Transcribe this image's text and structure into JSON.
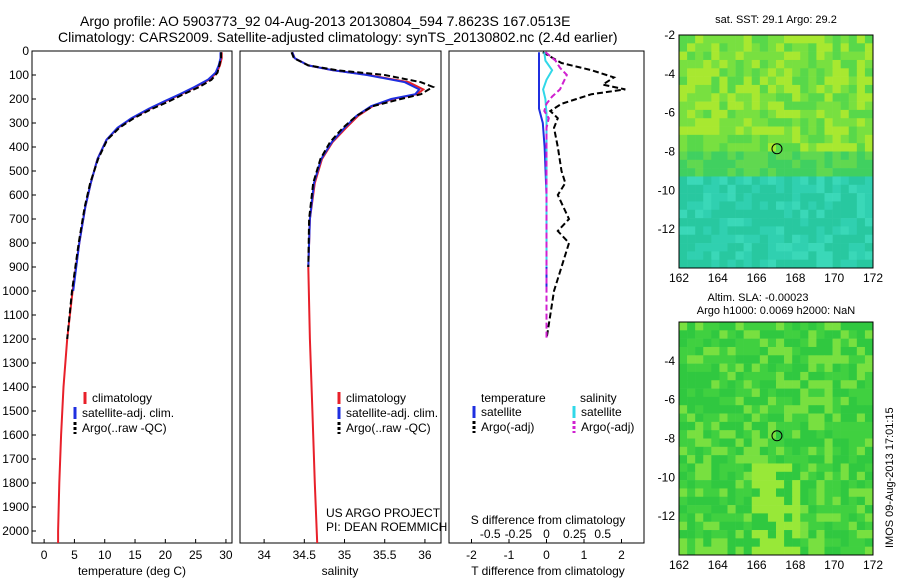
{
  "header": {
    "title_line1": "Argo profile: AO 5903773_92 04-Aug-2013 20130804_594 7.8623S 167.0513E",
    "title_line2": "Climatology: CARS2009. Satellite-adjusted climatology: synTS_20130802.nc (2.4d earlier)"
  },
  "colors": {
    "climatology": "#e8202a",
    "satellite": "#1f2fe0",
    "argo": "#000000",
    "salinity_satellite": "#30d8e8",
    "salinity_argo": "#d020d0"
  },
  "chart_data": [
    {
      "id": "temperature",
      "type": "line",
      "xlabel": "temperature (deg C)",
      "ylabel": "",
      "xlim": [
        -2,
        31
      ],
      "ylim": [
        2050,
        0
      ],
      "xticks": [
        0,
        5,
        10,
        15,
        20,
        25,
        30
      ],
      "yticks": [
        0,
        100,
        200,
        300,
        400,
        500,
        600,
        700,
        800,
        900,
        1000,
        1100,
        1200,
        1300,
        1400,
        1500,
        1600,
        1700,
        1800,
        1900,
        2000
      ],
      "legend": {
        "placement": "bottom-left",
        "entries": [
          "climatology",
          "satellite-adj. clim.",
          "Argo(..raw -QC)"
        ]
      },
      "series": [
        {
          "name": "climatology",
          "style": "solid",
          "color": "#e8202a",
          "depth": [
            5,
            30,
            60,
            90,
            120,
            150,
            180,
            210,
            240,
            280,
            320,
            370,
            450,
            550,
            650,
            800,
            1000,
            1200,
            1400,
            1600,
            1800,
            2000,
            2050
          ],
          "values": [
            29.3,
            29.3,
            29.0,
            28.5,
            27.2,
            25.0,
            22.6,
            20.0,
            17.5,
            14.5,
            12.2,
            10.3,
            8.8,
            7.7,
            6.8,
            5.8,
            4.7,
            3.8,
            3.2,
            2.8,
            2.5,
            2.3,
            2.3
          ]
        },
        {
          "name": "satellite-adj. clim.",
          "style": "solid",
          "color": "#1f2fe0",
          "depth": [
            5,
            30,
            60,
            90,
            120,
            150,
            180,
            210,
            240,
            280,
            320,
            370,
            450,
            550,
            650,
            800,
            1000
          ],
          "values": [
            29.1,
            29.1,
            28.8,
            28.3,
            27.0,
            24.8,
            22.4,
            19.8,
            17.3,
            14.4,
            12.1,
            10.3,
            8.8,
            7.7,
            6.8,
            5.8,
            4.8
          ]
        },
        {
          "name": "Argo(..raw -QC)",
          "style": "dashed",
          "color": "#000000",
          "depth": [
            5,
            30,
            60,
            90,
            120,
            150,
            180,
            210,
            240,
            280,
            320,
            370,
            450,
            550,
            650,
            800,
            1000,
            1200
          ],
          "values": [
            29.2,
            29.2,
            28.9,
            28.6,
            27.6,
            25.6,
            23.0,
            20.6,
            17.9,
            14.8,
            12.4,
            10.4,
            8.9,
            7.6,
            6.7,
            5.7,
            4.6,
            3.8
          ]
        }
      ]
    },
    {
      "id": "salinity",
      "type": "line",
      "xlabel": "salinity",
      "ylabel": "",
      "xlim": [
        33.7,
        36.2
      ],
      "ylim": [
        2050,
        0
      ],
      "xticks": [
        34,
        34.5,
        35,
        35.5,
        36
      ],
      "legend": {
        "placement": "bottom-left",
        "entries": [
          "climatology",
          "satellite-adj. clim.",
          "Argo(..raw -QC)"
        ]
      },
      "annotation": [
        "US ARGO PROJECT",
        "PI: DEAN ROEMMICH"
      ],
      "series": [
        {
          "name": "climatology",
          "style": "solid",
          "color": "#e8202a",
          "depth": [
            5,
            30,
            60,
            80,
            100,
            130,
            160,
            180,
            200,
            230,
            270,
            320,
            380,
            450,
            550,
            700,
            900,
            1200,
            1500,
            1800,
            2050
          ],
          "values": [
            34.35,
            34.38,
            34.55,
            34.85,
            35.3,
            35.8,
            35.98,
            35.9,
            35.6,
            35.35,
            35.17,
            35.02,
            34.85,
            34.72,
            34.63,
            34.57,
            34.55,
            34.57,
            34.6,
            34.63,
            34.66
          ]
        },
        {
          "name": "satellite-adj. clim.",
          "style": "solid",
          "color": "#1f2fe0",
          "depth": [
            5,
            30,
            60,
            80,
            100,
            130,
            160,
            180,
            200,
            230,
            270,
            320,
            380,
            450,
            550,
            700,
            900
          ],
          "values": [
            34.35,
            34.38,
            34.55,
            34.85,
            35.28,
            35.75,
            35.93,
            35.88,
            35.58,
            35.33,
            35.15,
            35.0,
            34.84,
            34.71,
            34.62,
            34.57,
            34.55
          ]
        },
        {
          "name": "Argo(..raw -QC)",
          "style": "dashed",
          "color": "#000000",
          "depth": [
            5,
            30,
            60,
            80,
            100,
            130,
            150,
            160,
            180,
            200,
            230,
            270,
            320,
            380,
            450,
            550,
            700,
            900
          ],
          "values": [
            34.34,
            34.37,
            34.55,
            34.9,
            35.5,
            35.95,
            36.1,
            36.05,
            35.95,
            35.7,
            35.35,
            35.15,
            34.98,
            34.82,
            34.7,
            34.61,
            34.56,
            34.55
          ]
        }
      ]
    },
    {
      "id": "difference",
      "type": "line",
      "xlabel": "T difference from climatology",
      "xlabel_top": "S difference from climatology",
      "ylabel": "",
      "xlim": [
        -2.6,
        2.6
      ],
      "ylim": [
        2050,
        0
      ],
      "xticks": [
        -2,
        -1,
        0,
        1,
        2
      ],
      "xticks_top": [
        -0.5,
        -0.25,
        0,
        0.25,
        0.5
      ],
      "legend": {
        "placement": "bottom-center",
        "headers": [
          "temperature",
          "salinity"
        ],
        "entries": [
          "satellite",
          "Argo(-adj)",
          "satellite",
          "Argo(-adj)"
        ]
      },
      "series": [
        {
          "name": "temperature satellite",
          "style": "solid",
          "color": "#1f2fe0",
          "depth": [
            5,
            60,
            120,
            180,
            240,
            300,
            400,
            600,
            800,
            1000
          ],
          "values": [
            -0.2,
            -0.2,
            -0.2,
            -0.2,
            -0.2,
            -0.1,
            -0.05,
            0,
            0,
            0
          ]
        },
        {
          "name": "temperature Argo(-adj)",
          "style": "dashed",
          "color": "#000000",
          "depth": [
            5,
            50,
            80,
            110,
            140,
            160,
            180,
            200,
            220,
            250,
            280,
            320,
            400,
            500,
            550,
            600,
            700,
            750,
            800,
            900,
            1000,
            1100,
            1200
          ],
          "values": [
            -0.1,
            0.4,
            1.2,
            1.8,
            1.5,
            2.1,
            1.2,
            0.8,
            0.4,
            0.1,
            0.3,
            0.2,
            0.3,
            0.4,
            0.5,
            0.3,
            0.6,
            0.3,
            0.6,
            0.4,
            0.2,
            0.1,
            0.0
          ]
        },
        {
          "name": "salinity satellite",
          "style": "solid",
          "color": "#30d8e8",
          "depth": [
            5,
            40,
            80,
            120,
            160,
            200,
            260,
            320,
            400,
            600,
            900
          ],
          "values": [
            -0.02,
            -0.01,
            0.05,
            0.0,
            -0.03,
            -0.01,
            0.0,
            0.0,
            0.0,
            0.0,
            0.0
          ]
        },
        {
          "name": "salinity Argo(-adj)",
          "style": "dashed",
          "color": "#d020d0",
          "depth": [
            5,
            40,
            70,
            100,
            130,
            160,
            190,
            220,
            250,
            280,
            320,
            400,
            600,
            900,
            1200
          ],
          "values": [
            -0.01,
            0.08,
            0.12,
            0.18,
            0.15,
            0.12,
            0.05,
            0.0,
            -0.02,
            0.02,
            0.0,
            0.0,
            0.0,
            0.0,
            0.0
          ]
        }
      ]
    },
    {
      "id": "sst_map",
      "type": "heatmap",
      "title": "sat. SST: 29.1  Argo: 29.2",
      "xlim": [
        162,
        172
      ],
      "ylim": [
        -14,
        -2
      ],
      "xticks": [
        162,
        164,
        166,
        168,
        170,
        172
      ],
      "yticks": [
        -2,
        -4,
        -6,
        -8,
        -10,
        -12
      ],
      "marker": {
        "lon": 167.05,
        "lat": -7.86
      }
    },
    {
      "id": "sla_map",
      "type": "heatmap",
      "title_line1": "Altim. SLA: -0.00023",
      "title_line2": "Argo h1000: 0.0069 h2000: NaN",
      "xlim": [
        162,
        172
      ],
      "ylim": [
        -14,
        -2
      ],
      "xticks": [
        162,
        164,
        166,
        168,
        170,
        172
      ],
      "yticks": [
        -4,
        -6,
        -8,
        -10,
        -12
      ],
      "marker": {
        "lon": 167.05,
        "lat": -7.86
      }
    }
  ],
  "footer": {
    "credit": "IMOS 09-Aug-2013 17:01:15"
  }
}
